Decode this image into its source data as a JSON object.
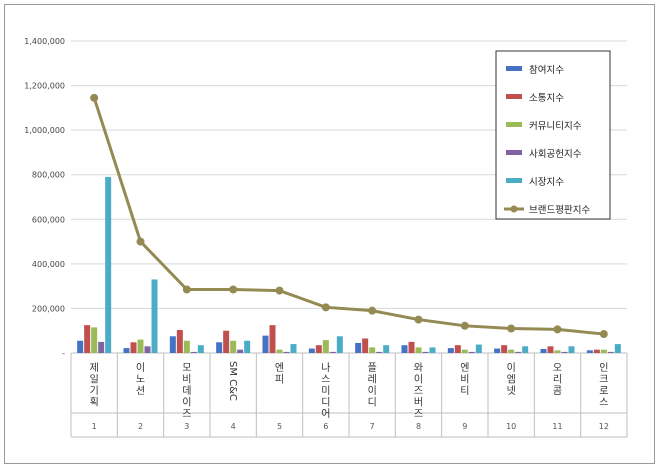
{
  "chart_data": {
    "type": "bar",
    "title": "",
    "xlabel": "",
    "ylabel": "",
    "ylim": [
      0,
      1400000
    ],
    "yticks": [
      {
        "value": 0,
        "label": "-"
      },
      {
        "value": 200000,
        "label": "200,000"
      },
      {
        "value": 400000,
        "label": "400,000"
      },
      {
        "value": 600000,
        "label": "600,000"
      },
      {
        "value": 800000,
        "label": "800,000"
      },
      {
        "value": 1000000,
        "label": "1,000,000"
      },
      {
        "value": 1200000,
        "label": "1,200,000"
      },
      {
        "value": 1400000,
        "label": "1,400,000"
      }
    ],
    "grid": true,
    "legend_position": "top-right",
    "categories": [
      "제일기획",
      "이노션",
      "모비데이즈",
      "SM C&C",
      "엔피",
      "나스미디어",
      "플레이디",
      "와이즈버즈",
      "엔비티",
      "이엠넷",
      "오리콤",
      "인크로스"
    ],
    "index_labels": [
      "1",
      "2",
      "3",
      "4",
      "5",
      "6",
      "7",
      "8",
      "9",
      "10",
      "11",
      "12"
    ],
    "series": [
      {
        "name": "참여지수",
        "kind": "bar",
        "color": "#4472c4",
        "values": [
          55000,
          22000,
          75000,
          48000,
          78000,
          20000,
          45000,
          35000,
          22000,
          20000,
          18000,
          12000
        ]
      },
      {
        "name": "소통지수",
        "kind": "bar",
        "color": "#c0504d",
        "values": [
          125000,
          48000,
          103000,
          100000,
          125000,
          35000,
          65000,
          50000,
          35000,
          35000,
          30000,
          15000
        ]
      },
      {
        "name": "커뮤니티지수",
        "kind": "bar",
        "color": "#9bbb59",
        "values": [
          115000,
          60000,
          55000,
          55000,
          15000,
          58000,
          25000,
          25000,
          15000,
          15000,
          12000,
          15000
        ]
      },
      {
        "name": "사회공헌지수",
        "kind": "bar",
        "color": "#8064a2",
        "values": [
          50000,
          30000,
          5000,
          15000,
          5000,
          5000,
          5000,
          5000,
          5000,
          5000,
          5000,
          5000
        ]
      },
      {
        "name": "시장지수",
        "kind": "bar",
        "color": "#4bacc6",
        "values": [
          790000,
          330000,
          35000,
          55000,
          40000,
          75000,
          35000,
          25000,
          38000,
          30000,
          30000,
          40000
        ]
      },
      {
        "name": "브랜드평판지수",
        "kind": "line",
        "color": "#948a54",
        "values": [
          1145000,
          500000,
          285000,
          285000,
          280000,
          205000,
          190000,
          150000,
          122000,
          110000,
          106000,
          85000
        ]
      }
    ]
  }
}
